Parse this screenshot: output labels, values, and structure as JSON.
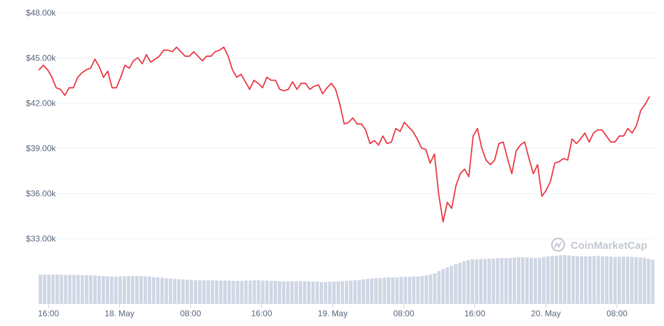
{
  "chart_data": {
    "type": "line",
    "title": "",
    "xlabel": "",
    "ylabel": "",
    "ylim": [
      30000,
      48000
    ],
    "y_ticks": [
      {
        "value": 48000,
        "label": "$48.00k"
      },
      {
        "value": 45000,
        "label": "$45.00k"
      },
      {
        "value": 42000,
        "label": "$42.00k"
      },
      {
        "value": 39000,
        "label": "$39.00k"
      },
      {
        "value": 36000,
        "label": "$36.00k"
      },
      {
        "value": 33000,
        "label": "$33.00k"
      }
    ],
    "x_range_hours": [
      -1.1,
      68.3
    ],
    "x_ticks": [
      {
        "hour": 0,
        "label": "16:00"
      },
      {
        "hour": 8,
        "label": "18. May"
      },
      {
        "hour": 16,
        "label": "08:00"
      },
      {
        "hour": 24,
        "label": "16:00"
      },
      {
        "hour": 32,
        "label": "19. May"
      },
      {
        "hour": 40,
        "label": "08:00"
      },
      {
        "hour": 48,
        "label": "16:00"
      },
      {
        "hour": 56,
        "label": "20. May"
      },
      {
        "hour": 64,
        "label": "08:00"
      }
    ],
    "grid": true,
    "line_color": "#ea3943",
    "volume_color": "#cfd6e4",
    "watermark": "CoinMarketCap",
    "price": [
      44200,
      44500,
      44200,
      43700,
      43000,
      42900,
      42500,
      43000,
      43000,
      43700,
      44000,
      44200,
      44300,
      44900,
      44400,
      43700,
      44100,
      43000,
      43000,
      43700,
      44500,
      44300,
      44800,
      45000,
      44600,
      45200,
      44700,
      44900,
      45100,
      45500,
      45500,
      45400,
      45700,
      45400,
      45100,
      45100,
      45400,
      45100,
      44800,
      45100,
      45100,
      45400,
      45500,
      45700,
      45100,
      44200,
      43700,
      43900,
      43400,
      42900,
      43500,
      43300,
      43000,
      43700,
      43500,
      43500,
      42900,
      42800,
      42900,
      43400,
      42900,
      43300,
      43300,
      42900,
      43100,
      43200,
      42600,
      43000,
      43300,
      42900,
      41900,
      40600,
      40700,
      41000,
      40600,
      40600,
      40200,
      39300,
      39500,
      39200,
      39800,
      39300,
      39400,
      40300,
      40100,
      40700,
      40400,
      40100,
      39600,
      39000,
      38900,
      38000,
      38600,
      35900,
      34100,
      35400,
      35000,
      36500,
      37300,
      37600,
      37100,
      39800,
      40300,
      39000,
      38200,
      37900,
      38200,
      39300,
      39400,
      38300,
      37300,
      38800,
      39200,
      39400,
      38300,
      37300,
      37900,
      35800,
      36200,
      36800,
      38000,
      38100,
      38300,
      38200,
      39600,
      39300,
      39600,
      40000,
      39400,
      40000,
      40200,
      40200,
      39800,
      39400,
      39400,
      39800,
      39800,
      40300,
      40000,
      40500,
      41500,
      41900,
      42400
    ],
    "volume": [
      2.0,
      2.0,
      2.0,
      2.0,
      2.0,
      1.98,
      1.98,
      1.98,
      1.98,
      1.98,
      1.96,
      1.96,
      1.96,
      1.94,
      1.92,
      1.9,
      1.88,
      1.86,
      1.86,
      1.88,
      1.88,
      1.9,
      1.9,
      1.9,
      1.9,
      1.88,
      1.86,
      1.82,
      1.8,
      1.78,
      1.74,
      1.72,
      1.7,
      1.68,
      1.66,
      1.64,
      1.62,
      1.6,
      1.6,
      1.6,
      1.6,
      1.6,
      1.58,
      1.58,
      1.58,
      1.58,
      1.56,
      1.56,
      1.56,
      1.58,
      1.58,
      1.6,
      1.6,
      1.58,
      1.58,
      1.56,
      1.56,
      1.54,
      1.52,
      1.52,
      1.54,
      1.54,
      1.54,
      1.54,
      1.52,
      1.5,
      1.5,
      1.48,
      1.48,
      1.5,
      1.5,
      1.52,
      1.54,
      1.56,
      1.58,
      1.6,
      1.62,
      1.66,
      1.7,
      1.72,
      1.74,
      1.76,
      1.78,
      1.8,
      1.8,
      1.82,
      1.84,
      1.84,
      1.84,
      1.86,
      1.86,
      1.9,
      1.94,
      2.0,
      2.1,
      2.24,
      2.38,
      2.5,
      2.62,
      2.72,
      2.84,
      2.94,
      3.02,
      3.06,
      3.08,
      3.1,
      3.1,
      3.12,
      3.12,
      3.14,
      3.16,
      3.16,
      3.18,
      3.2,
      3.22,
      3.22,
      3.2,
      3.18,
      3.16,
      3.18,
      3.24,
      3.28,
      3.3,
      3.32,
      3.36,
      3.38,
      3.34,
      3.32,
      3.3,
      3.28,
      3.28,
      3.28,
      3.3,
      3.3,
      3.28,
      3.28,
      3.26,
      3.24,
      3.24,
      3.26,
      3.26,
      3.24,
      3.22,
      3.2,
      3.18,
      3.1,
      3.04
    ]
  }
}
